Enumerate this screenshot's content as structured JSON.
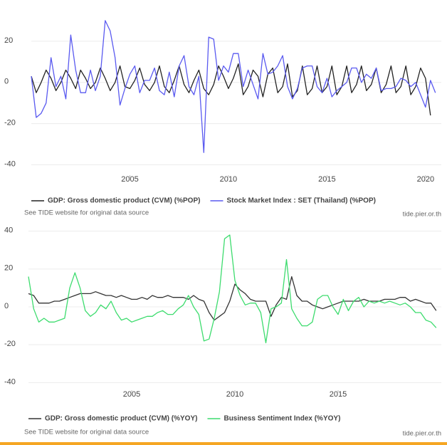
{
  "chart_data": [
    {
      "type": "line",
      "x": [
        2000,
        2000.25,
        2000.5,
        2000.75,
        2001,
        2001.25,
        2001.5,
        2001.75,
        2002,
        2002.25,
        2002.5,
        2002.75,
        2003,
        2003.25,
        2003.5,
        2003.75,
        2004,
        2004.25,
        2004.5,
        2004.75,
        2005,
        2005.25,
        2005.5,
        2005.75,
        2006,
        2006.25,
        2006.5,
        2006.75,
        2007,
        2007.25,
        2007.5,
        2007.75,
        2008,
        2008.25,
        2008.5,
        2008.75,
        2009,
        2009.25,
        2009.5,
        2009.75,
        2010,
        2010.25,
        2010.5,
        2010.75,
        2011,
        2011.25,
        2011.5,
        2011.75,
        2012,
        2012.25,
        2012.5,
        2012.75,
        2013,
        2013.25,
        2013.5,
        2013.75,
        2014,
        2014.25,
        2014.5,
        2014.75,
        2015,
        2015.25,
        2015.5,
        2015.75,
        2016,
        2016.25,
        2016.5,
        2016.75,
        2017,
        2017.25,
        2017.5,
        2017.75,
        2018,
        2018.25,
        2018.5,
        2018.75,
        2019,
        2019.25,
        2019.5,
        2019.75,
        2020,
        2020.25,
        2020.5
      ],
      "series": [
        {
          "name": "GDP: Gross domestic product (CVM) (%POP)",
          "color": "#222222",
          "values": [
            3,
            -5,
            0,
            6,
            2,
            -4,
            0,
            6,
            2,
            -3,
            6,
            2,
            -3,
            0,
            7,
            2,
            -4,
            0,
            8,
            -2,
            -3,
            1,
            7,
            -1,
            -4,
            0,
            8,
            -2,
            -5,
            1,
            8,
            -1,
            -5,
            1,
            6,
            -3,
            -6,
            -1,
            8,
            3,
            -3,
            2,
            9,
            -6,
            -2,
            6,
            3,
            -7,
            4,
            7,
            -5,
            -2,
            9,
            -7,
            -4,
            8,
            -6,
            -3,
            8,
            -5,
            -2,
            8,
            -6,
            -2,
            8,
            -5,
            -1,
            8,
            -4,
            -1,
            7,
            -5,
            -1,
            8,
            -5,
            -2,
            8,
            -6,
            -2,
            7,
            2,
            -16,
            null
          ]
        },
        {
          "name": "Stock Market Index : SET (Thailand) (%POP)",
          "color": "#5a5af0",
          "values": [
            3,
            -17,
            -15,
            -10,
            12,
            -2,
            3,
            -8,
            23,
            6,
            -5,
            -5,
            6,
            -4,
            3,
            30,
            25,
            12,
            -11,
            -3,
            4,
            8,
            -5,
            1,
            1,
            7,
            -4,
            -6,
            5,
            -7,
            8,
            13,
            -2,
            -6,
            3,
            -34,
            22,
            21,
            1,
            8,
            5,
            14,
            14,
            -2,
            6,
            -1,
            -8,
            14,
            4,
            5,
            8,
            13,
            -2,
            -8,
            -3,
            7,
            8,
            8,
            -2,
            -5,
            2,
            -7,
            -4,
            -2,
            0,
            7,
            7,
            0,
            4,
            2,
            7,
            -4,
            -3,
            -3,
            -2,
            2,
            1,
            -2,
            0,
            -6,
            -12,
            1,
            -5
          ]
        }
      ],
      "xlim": [
        2000,
        2020.8
      ],
      "xticks": [
        2005,
        2010,
        2015,
        2020
      ],
      "ylim": [
        -45,
        40
      ],
      "yticks": [
        -40,
        -20,
        0,
        20
      ],
      "grid": true,
      "source_note": "See TIDE website for original data source",
      "credit": "tide.pier.or.th"
    },
    {
      "type": "line",
      "x": [
        2000,
        2000.25,
        2000.5,
        2000.75,
        2001,
        2001.25,
        2001.5,
        2001.75,
        2002,
        2002.25,
        2002.5,
        2002.75,
        2003,
        2003.25,
        2003.5,
        2003.75,
        2004,
        2004.25,
        2004.5,
        2004.75,
        2005,
        2005.25,
        2005.5,
        2005.75,
        2006,
        2006.25,
        2006.5,
        2006.75,
        2007,
        2007.25,
        2007.5,
        2007.75,
        2008,
        2008.25,
        2008.5,
        2008.75,
        2009,
        2009.25,
        2009.5,
        2009.75,
        2010,
        2010.25,
        2010.5,
        2010.75,
        2011,
        2011.25,
        2011.5,
        2011.75,
        2012,
        2012.25,
        2012.5,
        2012.75,
        2013,
        2013.25,
        2013.5,
        2013.75,
        2014,
        2014.25,
        2014.5,
        2014.75,
        2015,
        2015.25,
        2015.5,
        2015.75,
        2016,
        2016.25,
        2016.5,
        2016.75,
        2017,
        2017.25,
        2017.5,
        2017.75,
        2018,
        2018.25,
        2018.5,
        2018.75,
        2019,
        2019.25,
        2019.5,
        2019.75
      ],
      "series": [
        {
          "name": "GDP: Gross domestic product (CVM) (%YOY)",
          "color": "#333333",
          "values": [
            7,
            6,
            2,
            2,
            2,
            3,
            3,
            4,
            5,
            6,
            7,
            7,
            7,
            8,
            7,
            6,
            6,
            5,
            6,
            5,
            4,
            4,
            5,
            4,
            6,
            5,
            5,
            6,
            5,
            5,
            5,
            4,
            6,
            4,
            3,
            -3,
            -7,
            -5,
            -3,
            3,
            12,
            9,
            7,
            4,
            3,
            3,
            3,
            -5,
            1,
            5,
            4,
            16,
            6,
            3,
            3,
            1,
            0,
            -1,
            0,
            1,
            2,
            3,
            3,
            3,
            3,
            4,
            3,
            3,
            3,
            4,
            4,
            4,
            5,
            5,
            3,
            4,
            3,
            2,
            2,
            -2
          ]
        },
        {
          "name": "Business Sentiment Index (%YOY)",
          "color": "#3ddc6e",
          "values": [
            16,
            -1,
            -8,
            -6,
            -8,
            -8,
            -7,
            -6,
            10,
            18,
            10,
            -2,
            -5,
            -3,
            1,
            -1,
            3,
            -3,
            -7,
            -6,
            -8,
            -7,
            -6,
            -5,
            -5,
            -3,
            -2,
            -4,
            -4,
            -1,
            1,
            6,
            0,
            -4,
            -18,
            -17,
            -6,
            8,
            36,
            38,
            14,
            6,
            1,
            2,
            2,
            -3,
            -19,
            -1,
            0,
            2,
            25,
            -1,
            -6,
            -10,
            -10,
            -8,
            4,
            6,
            6,
            0,
            -4,
            4,
            -2,
            3,
            5,
            0,
            3,
            2,
            3,
            2,
            3,
            2,
            1,
            2,
            0,
            -3,
            -3,
            -7,
            -8,
            -11
          ]
        }
      ],
      "xlim": [
        2000,
        2020
      ],
      "xticks": [
        2005,
        2010,
        2015
      ],
      "ylim": [
        -44,
        44
      ],
      "yticks": [
        -40,
        -20,
        0,
        20,
        40
      ],
      "grid": true,
      "source_note": "See TIDE website for original data source",
      "credit": "tide.pier.or.th"
    }
  ]
}
